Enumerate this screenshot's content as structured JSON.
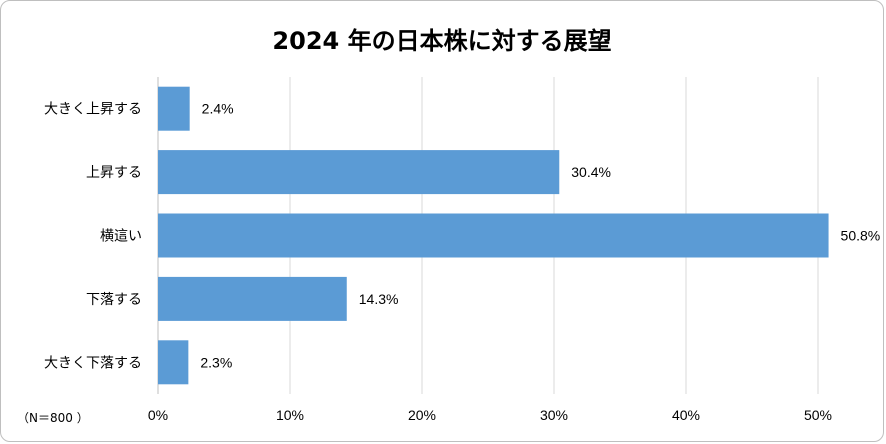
{
  "chart_data": {
    "type": "bar",
    "orientation": "horizontal",
    "title": "2024  年の日本株に対する展望",
    "note": "（N＝800 ）",
    "categories": [
      "大きく上昇する",
      "上昇する",
      "横這い",
      "下落する",
      "大きく下落する"
    ],
    "values": [
      2.4,
      30.4,
      50.8,
      14.3,
      2.3
    ],
    "data_labels": [
      "2.4%",
      "30.4%",
      "50.8%",
      "14.3%",
      "2.3%"
    ],
    "xlim": [
      0,
      50
    ],
    "xticks": [
      "0%",
      "10%",
      "20%",
      "30%",
      "40%",
      "50%"
    ],
    "grid": true,
    "bar_color": "#5b9bd5"
  }
}
